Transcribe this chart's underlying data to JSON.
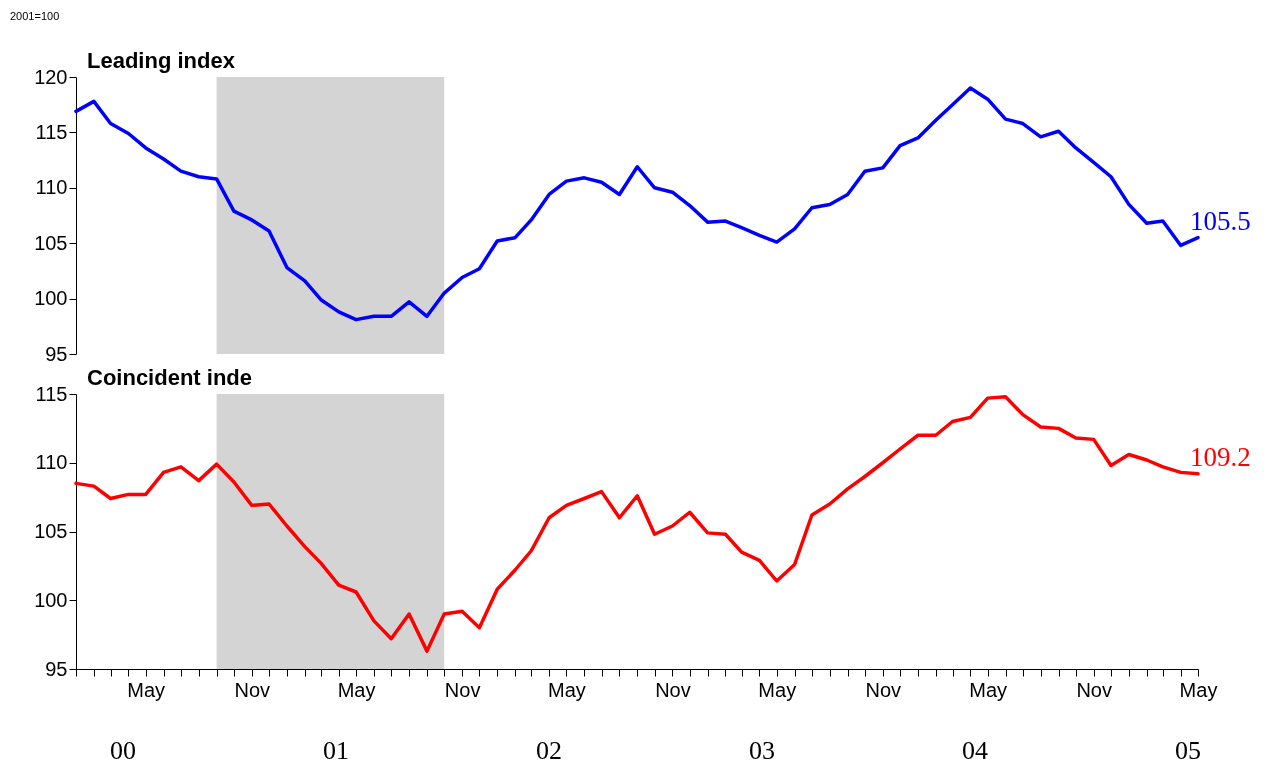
{
  "chart_data": [
    {
      "type": "line",
      "title": "Leading index",
      "annotations": [
        "2001=100"
      ],
      "x": [
        "2000-01",
        "2000-02",
        "2000-03",
        "2000-04",
        "2000-05",
        "2000-06",
        "2000-07",
        "2000-08",
        "2000-09",
        "2000-10",
        "2000-11",
        "2000-12",
        "2001-01",
        "2001-02",
        "2001-03",
        "2001-04",
        "2001-05",
        "2001-06",
        "2001-07",
        "2001-08",
        "2001-09",
        "2001-10",
        "2001-11",
        "2001-12",
        "2002-01",
        "2002-02",
        "2002-03",
        "2002-04",
        "2002-05",
        "2002-06",
        "2002-07",
        "2002-08",
        "2002-09",
        "2002-10",
        "2002-11",
        "2002-12",
        "2003-01",
        "2003-02",
        "2003-03",
        "2003-04",
        "2003-05",
        "2003-06",
        "2003-07",
        "2003-08",
        "2003-09",
        "2003-10",
        "2003-11",
        "2003-12",
        "2004-01",
        "2004-02",
        "2004-03",
        "2004-04",
        "2004-05",
        "2004-06",
        "2004-07",
        "2004-08",
        "2004-09",
        "2004-10",
        "2004-11",
        "2004-12",
        "2005-01",
        "2005-02",
        "2005-03",
        "2005-04",
        "2005-05"
      ],
      "series": [
        {
          "color": "#0000ff",
          "values": [
            116.9,
            117.8,
            115.8,
            114.9,
            113.6,
            112.6,
            111.5,
            111.0,
            110.8,
            107.9,
            107.1,
            106.1,
            102.8,
            101.6,
            99.9,
            98.8,
            98.1,
            98.4,
            98.4,
            99.7,
            98.4,
            100.5,
            101.9,
            102.7,
            105.2,
            105.5,
            107.1,
            109.4,
            110.6,
            110.9,
            110.5,
            109.4,
            111.9,
            110.0,
            109.6,
            108.4,
            106.9,
            107.0,
            106.4,
            105.7,
            105.1,
            106.3,
            108.2,
            108.5,
            109.4,
            111.5,
            111.8,
            113.8,
            114.5,
            116.1,
            117.5,
            119.0,
            118.0,
            116.2,
            115.8,
            114.6,
            115.1,
            113.6,
            112.3,
            111.0,
            108.5,
            106.8,
            107.0,
            104.8,
            105.5
          ],
          "value_labels": [
            null,
            null,
            null,
            null,
            null,
            null,
            null,
            null,
            null,
            null,
            null,
            null,
            null,
            null,
            null,
            null,
            null,
            null,
            null,
            null,
            null,
            null,
            null,
            null,
            null,
            null,
            null,
            null,
            null,
            null,
            null,
            null,
            null,
            null,
            null,
            null,
            null,
            null,
            null,
            null,
            null,
            null,
            null,
            null,
            null,
            null,
            null,
            null,
            null,
            null,
            null,
            null,
            null,
            null,
            null,
            null,
            null,
            null,
            null,
            null,
            null,
            null,
            null,
            null,
            "105.5"
          ]
        }
      ],
      "xlim": [
        "2000-01",
        "2005-05"
      ],
      "ylim": [
        95,
        120
      ],
      "yticks": [
        95,
        100,
        105,
        110,
        115,
        120
      ],
      "bands": [
        {
          "axis": "x",
          "from": "2000-09",
          "to": "2001-10",
          "color": "#d4d4d4"
        }
      ],
      "tick_labels": "y"
    },
    {
      "type": "line",
      "title": "Coincident inde",
      "annotations": [
        "00",
        "01",
        "02",
        "03",
        "04",
        "05"
      ],
      "x": [
        "2000-01",
        "2000-02",
        "2000-03",
        "2000-04",
        "2000-05",
        "2000-06",
        "2000-07",
        "2000-08",
        "2000-09",
        "2000-10",
        "2000-11",
        "2000-12",
        "2001-01",
        "2001-02",
        "2001-03",
        "2001-04",
        "2001-05",
        "2001-06",
        "2001-07",
        "2001-08",
        "2001-09",
        "2001-10",
        "2001-11",
        "2001-12",
        "2002-01",
        "2002-02",
        "2002-03",
        "2002-04",
        "2002-05",
        "2002-06",
        "2002-07",
        "2002-08",
        "2002-09",
        "2002-10",
        "2002-11",
        "2002-12",
        "2003-01",
        "2003-02",
        "2003-03",
        "2003-04",
        "2003-05",
        "2003-06",
        "2003-07",
        "2003-08",
        "2003-09",
        "2003-10",
        "2003-11",
        "2003-12",
        "2004-01",
        "2004-02",
        "2004-03",
        "2004-04",
        "2004-05",
        "2004-06",
        "2004-07",
        "2004-08",
        "2004-09",
        "2004-10",
        "2004-11",
        "2004-12",
        "2005-01",
        "2005-02",
        "2005-03",
        "2005-04",
        "2005-05"
      ],
      "series": [
        {
          "color": "#ff0000",
          "values": [
            108.5,
            108.3,
            107.4,
            107.7,
            107.7,
            109.3,
            109.7,
            108.7,
            109.9,
            108.6,
            106.9,
            107.0,
            105.4,
            103.9,
            102.7,
            101.1,
            100.6,
            98.5,
            97.2,
            99.0,
            96.3,
            99.0,
            99.2,
            98.0,
            100.8,
            102.2,
            103.6,
            106.0,
            106.9,
            107.4,
            107.9,
            106.0,
            107.6,
            104.8,
            105.4,
            106.4,
            104.9,
            104.8,
            103.5,
            102.9,
            101.4,
            102.6,
            106.2,
            107.0,
            108.1,
            109.0,
            110.0,
            111.0,
            112.0,
            112.0,
            113.0,
            113.3,
            114.7,
            114.8,
            113.5,
            112.6,
            112.5,
            111.8,
            111.7,
            109.8,
            110.6,
            110.2,
            109.7,
            109.3,
            109.2
          ],
          "value_labels": [
            null,
            null,
            null,
            null,
            null,
            null,
            null,
            null,
            null,
            null,
            null,
            null,
            null,
            null,
            null,
            null,
            null,
            null,
            null,
            null,
            null,
            null,
            null,
            null,
            null,
            null,
            null,
            null,
            null,
            null,
            null,
            null,
            null,
            null,
            null,
            null,
            null,
            null,
            null,
            null,
            null,
            null,
            null,
            null,
            null,
            null,
            null,
            null,
            null,
            null,
            null,
            null,
            null,
            null,
            null,
            null,
            null,
            null,
            null,
            null,
            null,
            null,
            null,
            null,
            "109.2"
          ]
        }
      ],
      "xlim": [
        "2000-01",
        "2005-05"
      ],
      "ylim": [
        95,
        115
      ],
      "yticks": [
        95,
        100,
        105,
        110,
        115
      ],
      "xticks": [
        {
          "value": "2000-01",
          "label": null
        },
        {
          "value": "2000-02",
          "label": null
        },
        {
          "value": "2000-03",
          "label": null
        },
        {
          "value": "2000-04",
          "label": null
        },
        {
          "value": "2000-05",
          "label": "May"
        },
        {
          "value": "2000-06",
          "label": null
        },
        {
          "value": "2000-07",
          "label": null
        },
        {
          "value": "2000-08",
          "label": null
        },
        {
          "value": "2000-09",
          "label": null
        },
        {
          "value": "2000-10",
          "label": null
        },
        {
          "value": "2000-11",
          "label": "Nov"
        },
        {
          "value": "2000-12",
          "label": null
        },
        {
          "value": "2001-01",
          "label": null
        },
        {
          "value": "2001-02",
          "label": null
        },
        {
          "value": "2001-03",
          "label": null
        },
        {
          "value": "2001-04",
          "label": null
        },
        {
          "value": "2001-05",
          "label": "May"
        },
        {
          "value": "2001-06",
          "label": null
        },
        {
          "value": "2001-07",
          "label": null
        },
        {
          "value": "2001-08",
          "label": null
        },
        {
          "value": "2001-09",
          "label": null
        },
        {
          "value": "2001-10",
          "label": null
        },
        {
          "value": "2001-11",
          "label": "Nov"
        },
        {
          "value": "2001-12",
          "label": null
        },
        {
          "value": "2002-01",
          "label": null
        },
        {
          "value": "2002-02",
          "label": null
        },
        {
          "value": "2002-03",
          "label": null
        },
        {
          "value": "2002-04",
          "label": null
        },
        {
          "value": "2002-05",
          "label": "May"
        },
        {
          "value": "2002-06",
          "label": null
        },
        {
          "value": "2002-07",
          "label": null
        },
        {
          "value": "2002-08",
          "label": null
        },
        {
          "value": "2002-09",
          "label": null
        },
        {
          "value": "2002-10",
          "label": null
        },
        {
          "value": "2002-11",
          "label": "Nov"
        },
        {
          "value": "2002-12",
          "label": null
        },
        {
          "value": "2003-01",
          "label": null
        },
        {
          "value": "2003-02",
          "label": null
        },
        {
          "value": "2003-03",
          "label": null
        },
        {
          "value": "2003-04",
          "label": null
        },
        {
          "value": "2003-05",
          "label": "May"
        },
        {
          "value": "2003-06",
          "label": null
        },
        {
          "value": "2003-07",
          "label": null
        },
        {
          "value": "2003-08",
          "label": null
        },
        {
          "value": "2003-09",
          "label": null
        },
        {
          "value": "2003-10",
          "label": null
        },
        {
          "value": "2003-11",
          "label": "Nov"
        },
        {
          "value": "2003-12",
          "label": null
        },
        {
          "value": "2004-01",
          "label": null
        },
        {
          "value": "2004-02",
          "label": null
        },
        {
          "value": "2004-03",
          "label": null
        },
        {
          "value": "2004-04",
          "label": null
        },
        {
          "value": "2004-05",
          "label": "May"
        },
        {
          "value": "2004-06",
          "label": null
        },
        {
          "value": "2004-07",
          "label": null
        },
        {
          "value": "2004-08",
          "label": null
        },
        {
          "value": "2004-09",
          "label": null
        },
        {
          "value": "2004-10",
          "label": null
        },
        {
          "value": "2004-11",
          "label": "Nov"
        },
        {
          "value": "2004-12",
          "label": null
        },
        {
          "value": "2005-01",
          "label": null
        },
        {
          "value": "2005-02",
          "label": null
        },
        {
          "value": "2005-03",
          "label": null
        },
        {
          "value": "2005-04",
          "label": null
        },
        {
          "value": "2005-05",
          "label": "May"
        }
      ],
      "bands": [
        {
          "axis": "x",
          "from": "2000-09",
          "to": "2001-10",
          "color": "#d4d4d4"
        }
      ]
    }
  ]
}
